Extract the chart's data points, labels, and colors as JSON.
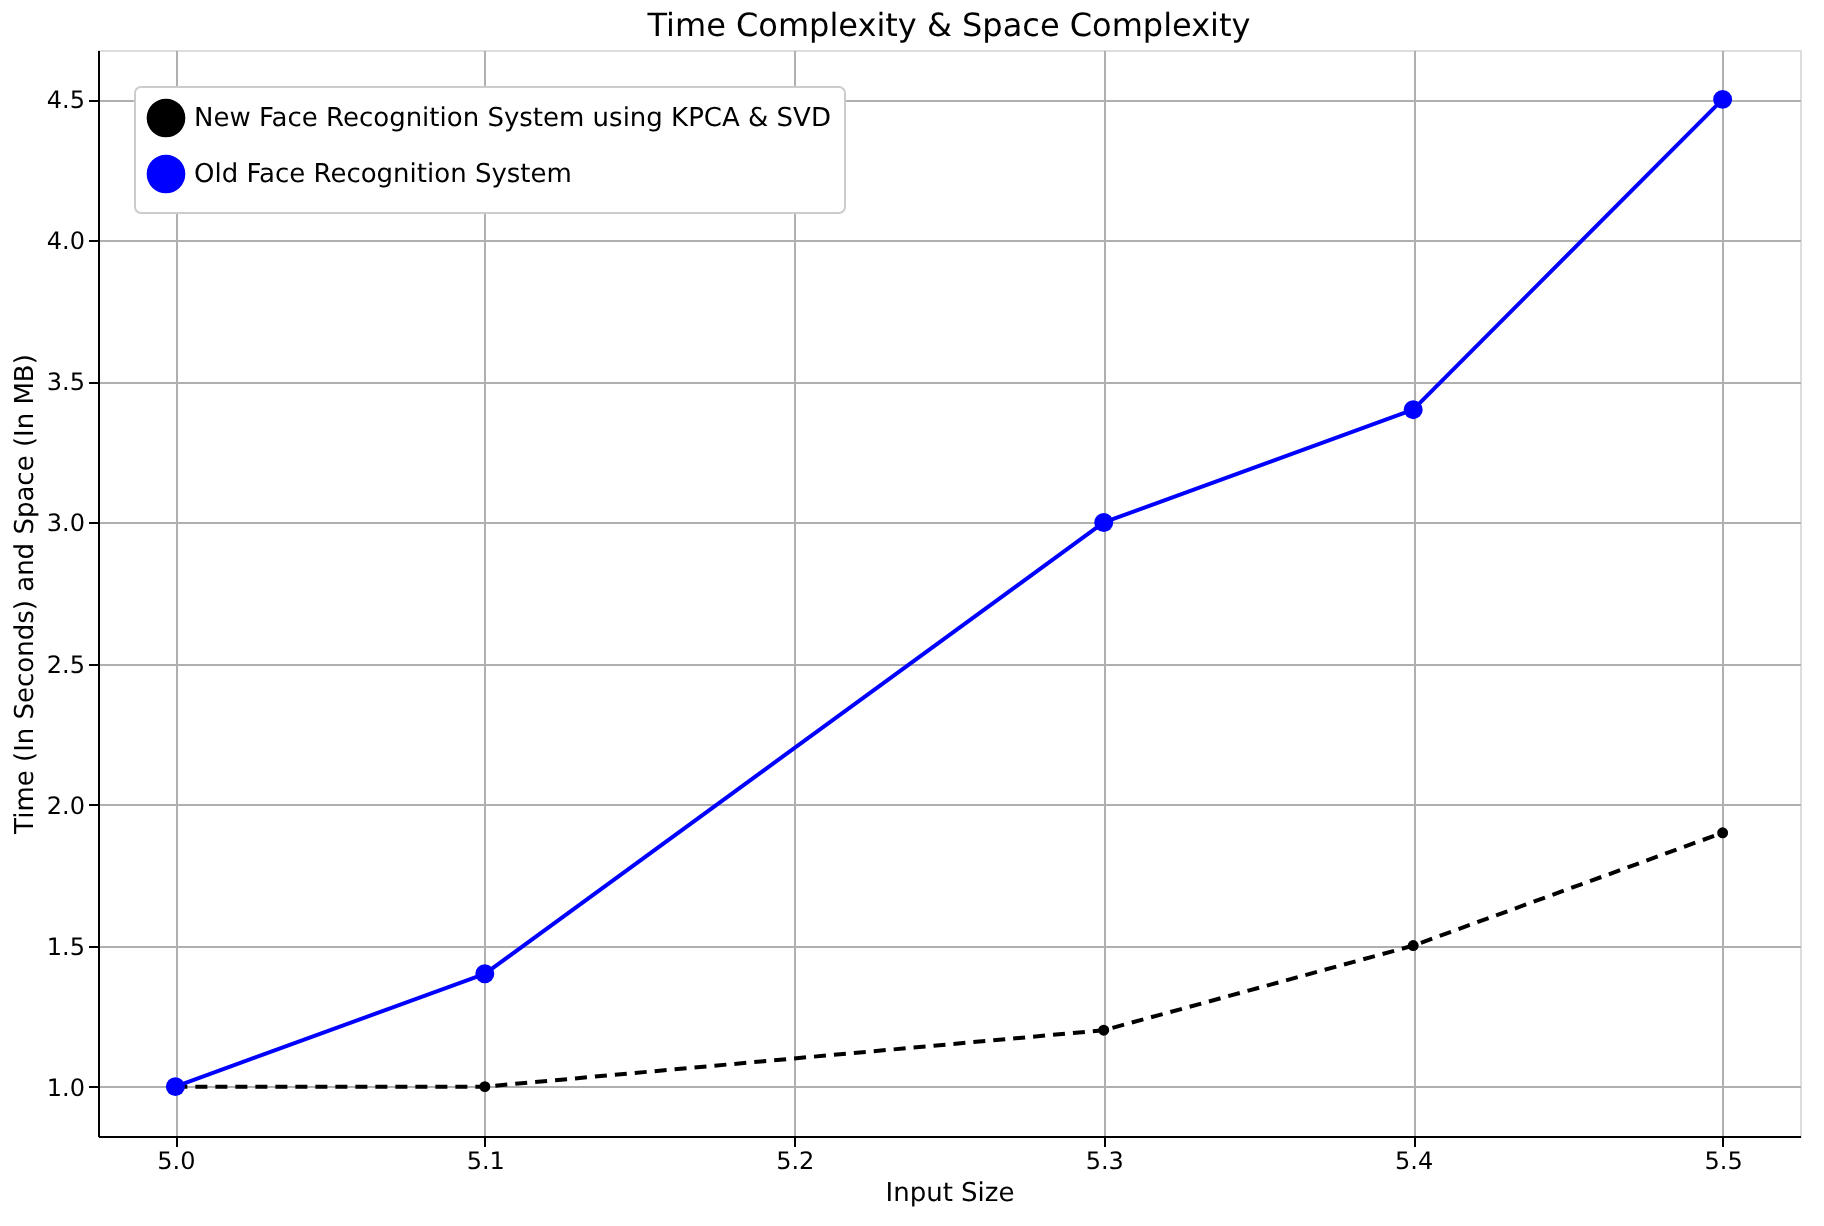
{
  "chart_data": {
    "type": "line",
    "title": "Time Complexity & Space Complexity",
    "xlabel": "Input Size",
    "ylabel": "Time (In Seconds) and Space (In MB)",
    "x": [
      5.0,
      5.1,
      5.3,
      5.4,
      5.5
    ],
    "series": [
      {
        "name": "New Face Recognition System using KPCA & SVD",
        "color": "#000000",
        "values": [
          1.0,
          1.0,
          1.2,
          1.5,
          1.9
        ],
        "line_style": "dashed",
        "marker": "circle"
      },
      {
        "name": "Old Face Recognition System",
        "color": "#0000ff",
        "values": [
          1.0,
          1.4,
          3.0,
          3.4,
          4.5
        ],
        "line_style": "solid",
        "marker": "circle"
      }
    ],
    "xlim": [
      4.975,
      5.525
    ],
    "xticks": [
      {
        "value": 5,
        "label": "5.0"
      },
      5.1,
      5.2,
      5.3,
      5.4,
      5.5
    ],
    "ylim": [
      0.825,
      4.675
    ],
    "yticks": [
      {
        "value": 1,
        "label": "1.0"
      },
      1.5,
      {
        "value": 2,
        "label": "2.0"
      },
      2.5,
      {
        "value": 3,
        "label": "3.0"
      },
      3.5,
      {
        "value": 4,
        "label": "4.0"
      },
      4.5
    ],
    "grid": true,
    "legend": "top left"
  }
}
